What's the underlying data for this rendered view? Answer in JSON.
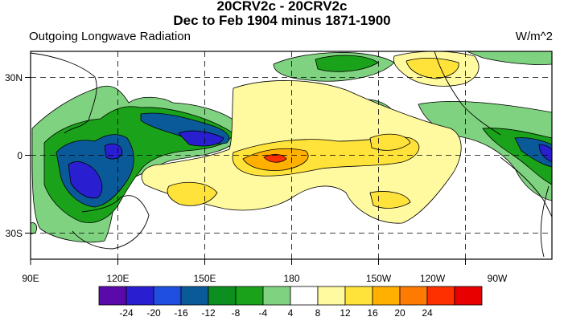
{
  "header": {
    "title_line1": "20CRV2c - 20CRV2c",
    "title_line2": "Dec to Feb 1904 minus 1871-1900",
    "left_string": "Outgoing Longwave Radiation",
    "right_string": "W/m^2"
  },
  "map": {
    "x_ticks": [
      "90E",
      "120E",
      "150E",
      "180",
      "150W",
      "120W",
      "90W"
    ],
    "y_ticks": [
      "30N",
      "0",
      "30S"
    ],
    "fill_colors": {
      "strong_negative": "#2a1fd0",
      "negative_12": "#0a5a9a",
      "negative_8": "#1aa21a",
      "negative_4": "#7fd27f",
      "positive_4": "#fff9a0",
      "positive_8": "#ffe23a",
      "positive_12": "#ffb000",
      "positive_16": "#ff7a00",
      "positive_20": "#ff3000"
    }
  },
  "colorbar": {
    "labels": [
      "-24",
      "-20",
      "-16",
      "-12",
      "-8",
      "-4",
      "4",
      "8",
      "12",
      "16",
      "20",
      "24"
    ],
    "colors": [
      "#5a0aa8",
      "#2a1fd0",
      "#1f4fe0",
      "#0a5a9a",
      "#0c8f1f",
      "#1aa21a",
      "#7fd27f",
      "#ffffff",
      "#fff9a0",
      "#ffe23a",
      "#ffb000",
      "#ff7a00",
      "#ff3000",
      "#e80000"
    ]
  }
}
